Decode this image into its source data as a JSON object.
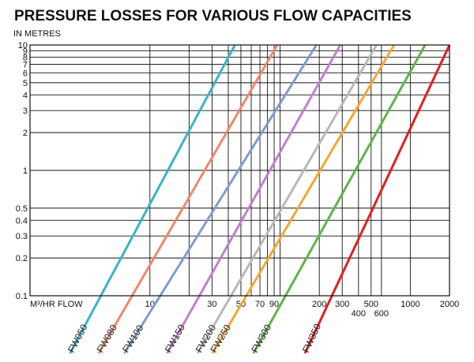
{
  "chart_data": {
    "type": "line",
    "title": "PRESSURE LOSSES FOR VARIOUS FLOW CAPACITIES",
    "ylabel": "IN METRES",
    "xlabel": "M³/HR FLOW",
    "x_scale": "log",
    "y_scale": "log",
    "xlim": [
      1.2,
      2000
    ],
    "ylim": [
      0.1,
      10
    ],
    "grid": true,
    "y_ticks": [
      {
        "value": 10,
        "label": "10"
      },
      {
        "value": 9,
        "label": "9"
      },
      {
        "value": 8,
        "label": "8"
      },
      {
        "value": 7,
        "label": "7"
      },
      {
        "value": 6,
        "label": "6"
      },
      {
        "value": 5,
        "label": "5"
      },
      {
        "value": 4,
        "label": "4"
      },
      {
        "value": 3,
        "label": "3"
      },
      {
        "value": 2,
        "label": "2"
      },
      {
        "value": 1,
        "label": "1"
      },
      {
        "value": 0.5,
        "label": "0.5"
      },
      {
        "value": 0.4,
        "label": "0.4"
      },
      {
        "value": 0.3,
        "label": "0.3"
      },
      {
        "value": 0.2,
        "label": "0.2"
      },
      {
        "value": 0.1,
        "label": "0.1"
      }
    ],
    "x_ticks": [
      {
        "value": 10,
        "label": "10",
        "row": 0
      },
      {
        "value": 30,
        "label": "30",
        "row": 0
      },
      {
        "value": 50,
        "label": "50",
        "row": 0
      },
      {
        "value": 70,
        "label": "70",
        "row": 0
      },
      {
        "value": 90,
        "label": "90",
        "row": 0
      },
      {
        "value": 200,
        "label": "200",
        "row": 0
      },
      {
        "value": 300,
        "label": "300",
        "row": 0
      },
      {
        "value": 400,
        "label": "400",
        "row": 1
      },
      {
        "value": 500,
        "label": "500",
        "row": 0
      },
      {
        "value": 600,
        "label": "600",
        "row": 1
      },
      {
        "value": 1000,
        "label": "1000",
        "row": 0
      },
      {
        "value": 2000,
        "label": "2000",
        "row": 0
      }
    ],
    "x_gridlines": [
      10,
      20,
      30,
      40,
      50,
      60,
      70,
      80,
      90,
      100,
      200,
      300,
      400,
      500,
      600,
      1000,
      2000
    ],
    "series": [
      {
        "name": "FW050",
        "color": "#3bb3c8",
        "points": [
          [
            4.2,
            0.1
          ],
          [
            45,
            10
          ]
        ]
      },
      {
        "name": "FW080",
        "color": "#f0876a",
        "points": [
          [
            7.3,
            0.1
          ],
          [
            95,
            10
          ]
        ]
      },
      {
        "name": "FW100",
        "color": "#7f9ccf",
        "points": [
          [
            12,
            0.1
          ],
          [
            190,
            10
          ]
        ]
      },
      {
        "name": "FW150",
        "color": "#c17fcf",
        "points": [
          [
            24,
            0.1
          ],
          [
            290,
            10
          ]
        ]
      },
      {
        "name": "FW200",
        "color": "#b8b8b8",
        "points": [
          [
            42,
            0.1
          ],
          [
            550,
            10
          ]
        ]
      },
      {
        "name": "FW250",
        "color": "#f6a531",
        "points": [
          [
            55,
            0.1
          ],
          [
            750,
            10
          ]
        ]
      },
      {
        "name": "FW300",
        "color": "#5db646",
        "points": [
          [
            110,
            0.1
          ],
          [
            1300,
            10
          ]
        ]
      },
      {
        "name": "FW350",
        "color": "#e02020",
        "points": [
          [
            250,
            0.1
          ],
          [
            2000,
            10
          ]
        ]
      }
    ]
  }
}
